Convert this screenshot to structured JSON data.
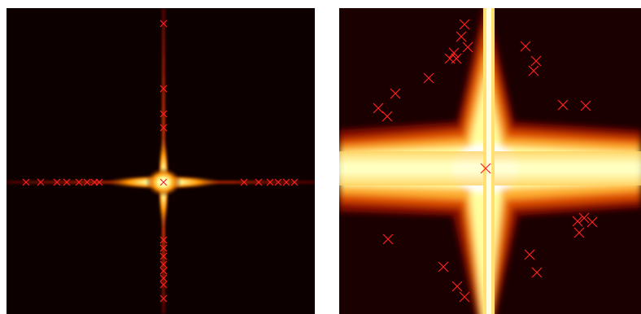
{
  "chart_data": [
    {
      "type": "scatter",
      "color": "#ff2020",
      "marker": "x",
      "xlim": [
        0,
        379
      ],
      "ylim": [
        376,
        0
      ],
      "x": [
        193,
        193,
        193,
        193,
        193,
        193,
        193,
        193,
        193,
        193,
        193,
        193,
        193,
        24,
        42,
        62,
        74,
        89,
        99,
        108,
        114,
        292,
        310,
        324,
        334,
        344,
        354
      ],
      "y": [
        19,
        99,
        130,
        147,
        214,
        285,
        295,
        305,
        315,
        323,
        332,
        340,
        357,
        214,
        214,
        214,
        214,
        214,
        214,
        214,
        214,
        214,
        214,
        214,
        214,
        214,
        214
      ]
    },
    {
      "type": "scatter",
      "color": "#ff2020",
      "marker": "x",
      "xlim": [
        0,
        371
      ],
      "ylim": [
        376,
        0
      ],
      "x": [
        154,
        150,
        158,
        136,
        144,
        141,
        110,
        69,
        48,
        59,
        229,
        242,
        239,
        275,
        303,
        180,
        60,
        128,
        145,
        154,
        234,
        243,
        293,
        301,
        311,
        295
      ],
      "y": [
        20,
        35,
        48,
        62,
        62,
        55,
        86,
        105,
        123,
        133,
        47,
        65,
        77,
        119,
        120,
        197,
        284,
        318,
        342,
        355,
        303,
        325,
        262,
        258,
        263,
        276
      ]
    }
  ]
}
